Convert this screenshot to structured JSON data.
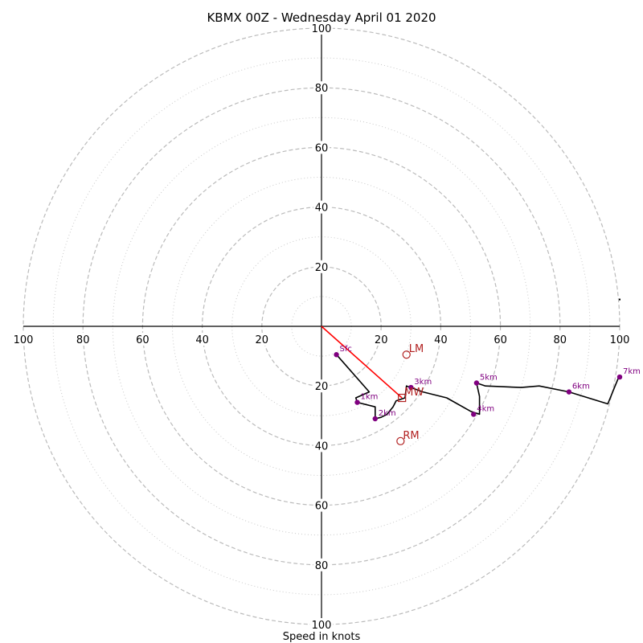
{
  "chart_data": {
    "type": "hodograph",
    "title": "KBMX 00Z - Wednesday April 01 2020",
    "xlabel": "Speed in knots",
    "range": [
      -100,
      100
    ],
    "rings_major": [
      20,
      40,
      60,
      80,
      100
    ],
    "rings_minor": [
      10,
      30,
      50,
      70,
      90
    ],
    "tick_labels": {
      "top": [
        "20",
        "40",
        "60",
        "80",
        "100"
      ],
      "bottom": [
        "20",
        "40",
        "60",
        "80",
        "100"
      ],
      "left": [
        "20",
        "40",
        "60",
        "80",
        "100"
      ],
      "right": [
        "20",
        "40",
        "60",
        "80",
        "100"
      ]
    },
    "grid_color": "#bbbbbb",
    "trace_color": "#000000",
    "height_marker_color": "#800080",
    "motion_color": "#b22222",
    "shear_color": "#ff0000",
    "trace": [
      [
        5,
        -9.5
      ],
      [
        16,
        -22
      ],
      [
        11.5,
        -24
      ],
      [
        12,
        -25.5
      ],
      [
        18,
        -27
      ],
      [
        18,
        -31
      ],
      [
        20,
        -30.5
      ],
      [
        22,
        -29.5
      ],
      [
        24,
        -27
      ],
      [
        25,
        -25
      ],
      [
        28,
        -24
      ],
      [
        28.5,
        -20
      ],
      [
        30,
        -20.5
      ],
      [
        34,
        -22
      ],
      [
        42,
        -24
      ],
      [
        50,
        -28.5
      ],
      [
        53,
        -29.5
      ],
      [
        53,
        -23.5
      ],
      [
        52,
        -19
      ],
      [
        55,
        -20
      ],
      [
        67,
        -20.5
      ],
      [
        73,
        -20
      ],
      [
        83,
        -22
      ],
      [
        96,
        -26
      ],
      [
        99.5,
        -17.5
      ],
      [
        100,
        -17
      ]
    ],
    "height_markers": [
      {
        "label": "Sfc",
        "u": 5,
        "v": -9.5
      },
      {
        "label": "1km",
        "u": 12,
        "v": -25.5
      },
      {
        "label": "2km",
        "u": 18,
        "v": -31
      },
      {
        "label": "3km",
        "u": 30,
        "v": -20.5
      },
      {
        "label": "4km",
        "u": 51,
        "v": -29.5
      },
      {
        "label": "5km",
        "u": 52,
        "v": -19
      },
      {
        "label": "6km",
        "u": 83,
        "v": -22
      },
      {
        "label": "7km",
        "u": 100,
        "v": -17
      }
    ],
    "storm_motion": [
      {
        "label": "LM",
        "u": 28.5,
        "v": -9.5,
        "marker": "circle"
      },
      {
        "label": "MW",
        "u": 27,
        "v": -24,
        "marker": "square"
      },
      {
        "label": "RM",
        "u": 26.5,
        "v": -38.5,
        "marker": "circle"
      }
    ],
    "shear_line": [
      [
        0,
        0
      ],
      [
        27,
        -24
      ]
    ],
    "stray_point": {
      "u": 100,
      "v": 9
    }
  }
}
